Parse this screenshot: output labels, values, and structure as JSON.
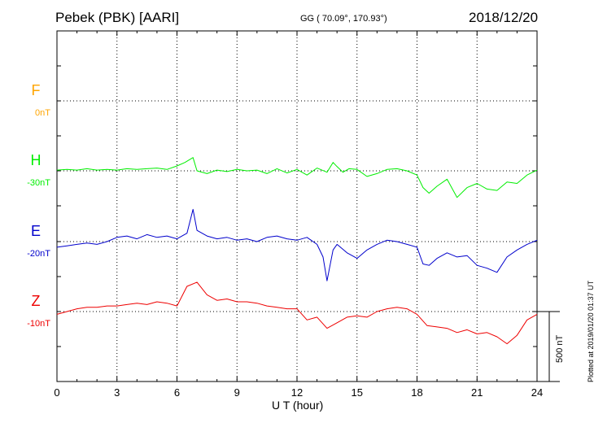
{
  "header": {
    "station": "Pebek (PBK)  [AARI]",
    "coords": "GG ( 70.09°, 170.93°)",
    "date": "2018/12/20"
  },
  "footer": {
    "plotted": "Plotted at 2019/01/20 01:37 UT"
  },
  "chart_data": {
    "type": "line",
    "title": "Pebek (PBK)  [AARI]",
    "xlabel": "U T (hour)",
    "ylabel": "",
    "xlim": [
      0,
      24
    ],
    "xticks": [
      0,
      3,
      6,
      9,
      12,
      15,
      18,
      21,
      24
    ],
    "grid": true,
    "scale_bar": {
      "value": 500,
      "label": "500 nT"
    },
    "series": [
      {
        "name": "F",
        "offset_label": "0nT",
        "color": "#ffa500",
        "x": [],
        "y": []
      },
      {
        "name": "H",
        "offset_label": "-30nT",
        "color": "#00ee00",
        "x": [
          0,
          0.5,
          1,
          1.5,
          2,
          2.5,
          3,
          3.5,
          4,
          4.5,
          5,
          5.5,
          6,
          6.4,
          6.8,
          7,
          7.5,
          8,
          8.5,
          9,
          9.5,
          10,
          10.5,
          11,
          11.5,
          12,
          12.5,
          13,
          13.5,
          13.8,
          14,
          14.3,
          14.6,
          15,
          15.5,
          16,
          16.5,
          17,
          17.5,
          18,
          18.3,
          18.6,
          19,
          19.5,
          20,
          20.5,
          21,
          21.5,
          22,
          22.5,
          23,
          23.5,
          24
        ],
        "y": [
          5,
          10,
          5,
          15,
          5,
          10,
          5,
          15,
          10,
          15,
          20,
          10,
          35,
          60,
          95,
          0,
          -20,
          5,
          -5,
          10,
          0,
          5,
          -20,
          15,
          -15,
          10,
          -30,
          20,
          -10,
          60,
          30,
          -10,
          15,
          10,
          -40,
          -20,
          10,
          15,
          0,
          -30,
          -120,
          -160,
          -110,
          -60,
          -190,
          -120,
          -90,
          -130,
          -140,
          -80,
          -90,
          -30,
          5
        ]
      },
      {
        "name": "E",
        "offset_label": "-20nT",
        "color": "#0000cc",
        "x": [
          0,
          0.5,
          1,
          1.5,
          2,
          2.5,
          3,
          3.5,
          4,
          4.5,
          5,
          5.5,
          6,
          6.5,
          6.8,
          7,
          7.5,
          8,
          8.5,
          9,
          9.5,
          10,
          10.5,
          11,
          11.5,
          12,
          12.5,
          13,
          13.3,
          13.5,
          13.8,
          14,
          14.5,
          15,
          15.5,
          16,
          16.5,
          17,
          17.5,
          18,
          18.3,
          18.6,
          19,
          19.5,
          20,
          20.5,
          21,
          21.5,
          22,
          22.5,
          23,
          23.5,
          24
        ],
        "y": [
          -40,
          -30,
          -20,
          -10,
          -20,
          0,
          30,
          40,
          20,
          50,
          30,
          40,
          20,
          60,
          230,
          80,
          40,
          20,
          30,
          10,
          20,
          0,
          30,
          40,
          20,
          10,
          30,
          -20,
          -110,
          -280,
          -60,
          -20,
          -80,
          -120,
          -60,
          -20,
          10,
          0,
          -20,
          -40,
          -160,
          -170,
          -120,
          -80,
          -110,
          -100,
          -170,
          -190,
          -220,
          -110,
          -60,
          -20,
          10
        ]
      },
      {
        "name": "Z",
        "offset_label": "-10nT",
        "color": "#ee0000",
        "x": [
          0,
          0.5,
          1,
          1.5,
          2,
          2.5,
          3,
          3.5,
          4,
          4.5,
          5,
          5.5,
          6,
          6.5,
          7,
          7.5,
          8,
          8.5,
          9,
          9.5,
          10,
          10.5,
          11,
          11.5,
          12,
          12.5,
          13,
          13.5,
          14,
          14.5,
          15,
          15.5,
          16,
          16.5,
          17,
          17.5,
          18,
          18.5,
          19,
          19.5,
          20,
          20.5,
          21,
          21.5,
          22,
          22.5,
          23,
          23.5,
          24
        ],
        "y": [
          -20,
          0,
          20,
          30,
          30,
          40,
          40,
          50,
          60,
          50,
          70,
          60,
          40,
          180,
          210,
          120,
          80,
          90,
          70,
          70,
          60,
          40,
          30,
          20,
          20,
          -60,
          -40,
          -120,
          -80,
          -40,
          -30,
          -40,
          0,
          20,
          30,
          20,
          -20,
          -100,
          -110,
          -120,
          -150,
          -130,
          -160,
          -150,
          -180,
          -230,
          -170,
          -60,
          -20
        ]
      }
    ]
  }
}
